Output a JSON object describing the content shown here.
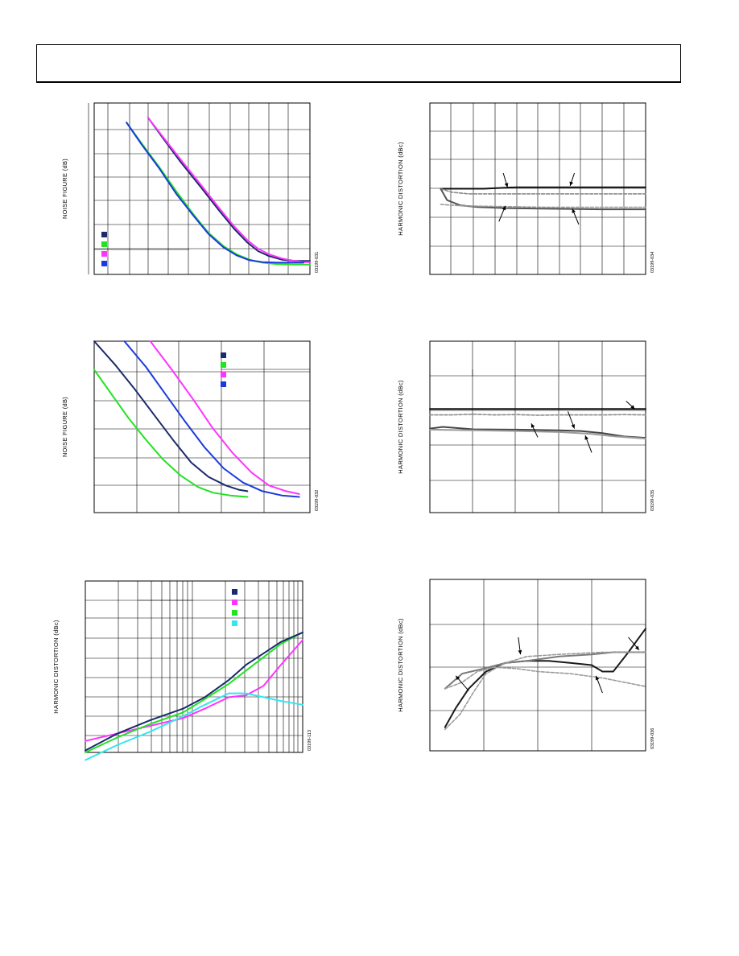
{
  "page": {
    "colors": {
      "border": "#000000",
      "grid": "#000000"
    }
  },
  "charts": [
    {
      "id": "tpc-31",
      "chart_data": {
        "type": "line",
        "ylabel": "NOISE FIGURE (dB)",
        "figure_id": "03199-031",
        "xscale": "log",
        "xlim": [
          0,
          10
        ],
        "ylim": [
          0,
          7
        ],
        "grid": true,
        "legend": {
          "position": "bottom-left",
          "colors": [
            "#1a2a6c",
            "#21e321",
            "#ff33ff",
            "#1a3adf"
          ]
        },
        "series": [
          {
            "color": "#1a2a6c",
            "x": [
              2.5,
              3.2,
              4.0,
              5.0,
              5.8,
              6.5,
              7.1,
              7.6,
              8.1,
              8.7,
              9.3,
              9.7,
              10.0
            ],
            "y": [
              6.4,
              5.55,
              4.6,
              3.5,
              2.6,
              1.85,
              1.3,
              0.95,
              0.75,
              0.6,
              0.55,
              0.55,
              0.55
            ]
          },
          {
            "color": "#ff33ff",
            "x": [
              2.5,
              3.2,
              4.0,
              5.0,
              5.8,
              6.5,
              7.1,
              7.6,
              8.1,
              8.7,
              9.3,
              9.7,
              10.0
            ],
            "y": [
              6.4,
              5.6,
              4.7,
              3.6,
              2.7,
              1.95,
              1.4,
              1.05,
              0.82,
              0.65,
              0.55,
              0.5,
              0.5
            ]
          },
          {
            "color": "#21e321",
            "x": [
              1.5,
              2.2,
              3.0,
              3.8,
              4.6,
              5.3,
              6.0,
              6.6,
              7.2,
              7.8,
              8.5,
              9.3,
              10.0
            ],
            "y": [
              6.2,
              5.35,
              4.4,
              3.4,
              2.45,
              1.7,
              1.15,
              0.82,
              0.6,
              0.48,
              0.42,
              0.4,
              0.4
            ]
          },
          {
            "color": "#1a3adf",
            "x": [
              1.5,
              2.2,
              3.0,
              3.8,
              4.6,
              5.3,
              6.0,
              6.6,
              7.2,
              7.8,
              8.5,
              9.3,
              9.7
            ],
            "y": [
              6.2,
              5.3,
              4.35,
              3.3,
              2.4,
              1.65,
              1.1,
              0.78,
              0.58,
              0.5,
              0.48,
              0.48,
              0.48
            ]
          }
        ]
      }
    },
    {
      "id": "tpc-32",
      "chart_data": {
        "type": "line",
        "ylabel": "NOISE FIGURE (dB)",
        "figure_id": "03199-032",
        "xlim": [
          0,
          10
        ],
        "ylim": [
          0,
          6
        ],
        "grid": true,
        "legend": {
          "position": "top-right",
          "colors": [
            "#1a2a6c",
            "#21e321",
            "#ff33ff",
            "#1a3adf"
          ]
        },
        "series": [
          {
            "color": "#21e321",
            "x": [
              0,
              0.8,
              1.6,
              2.4,
              3.2,
              4.0,
              4.8,
              5.5,
              6.3,
              7.1
            ],
            "y": [
              5.0,
              4.15,
              3.3,
              2.55,
              1.85,
              1.3,
              0.9,
              0.7,
              0.6,
              0.55
            ]
          },
          {
            "color": "#1a2a6c",
            "x": [
              0,
              1.0,
              1.9,
              2.8,
              3.7,
              4.5,
              5.3,
              6.1,
              6.7,
              7.1
            ],
            "y": [
              6.0,
              5.15,
              4.3,
              3.4,
              2.5,
              1.75,
              1.25,
              0.95,
              0.8,
              0.75
            ]
          },
          {
            "color": "#1a3adf",
            "x": [
              1.4,
              2.4,
              3.3,
              4.2,
              5.1,
              6.0,
              6.9,
              7.8,
              8.7,
              9.5
            ],
            "y": [
              6.0,
              5.1,
              4.15,
              3.2,
              2.3,
              1.55,
              1.05,
              0.75,
              0.6,
              0.55
            ]
          },
          {
            "color": "#ff33ff",
            "x": [
              2.6,
              3.6,
              4.6,
              5.5,
              6.4,
              7.3,
              8.1,
              8.9,
              9.5
            ],
            "y": [
              6.0,
              5.0,
              3.95,
              2.95,
              2.1,
              1.4,
              0.95,
              0.75,
              0.65
            ]
          }
        ]
      }
    },
    {
      "id": "tpc-33",
      "chart_data": {
        "type": "line",
        "ylabel": "HARMONIC DISTORTION (dBc)",
        "figure_id": "03199-113",
        "xscale": "log",
        "xlim": [
          0,
          10
        ],
        "ylim": [
          0,
          9
        ],
        "grid": true,
        "legend": {
          "position": "top-right",
          "colors": [
            "#1a2a6c",
            "#ff33ff",
            "#21e321",
            "#33e6f0"
          ]
        },
        "series": [
          {
            "color": "#ff33ff",
            "x": [
              0,
              1.5,
              3.0,
              4.5,
              5.5,
              6.6,
              7.4,
              8.2,
              9.0,
              10.0
            ],
            "y": [
              0.6,
              1.0,
              1.4,
              1.8,
              2.3,
              2.9,
              3.0,
              3.5,
              4.6,
              5.9
            ]
          },
          {
            "color": "#33e6f0",
            "x": [
              0,
              1.5,
              3.0,
              4.5,
              5.5,
              6.6,
              7.4,
              8.2,
              9.0,
              10.0
            ],
            "y": [
              -0.4,
              0.4,
              1.1,
              1.9,
              2.5,
              3.1,
              3.1,
              2.9,
              2.7,
              2.5
            ]
          },
          {
            "color": "#21e321",
            "x": [
              0,
              1.5,
              3.0,
              4.5,
              5.5,
              6.6,
              7.4,
              8.2,
              9.0,
              10.0
            ],
            "y": [
              0,
              0.8,
              1.5,
              2.1,
              2.8,
              3.6,
              4.3,
              5.0,
              5.7,
              6.3
            ]
          },
          {
            "color": "#1a2a6c",
            "x": [
              0,
              1.5,
              3.0,
              4.5,
              5.5,
              6.6,
              7.4,
              8.2,
              9.0,
              10.0
            ],
            "y": [
              0.1,
              1.0,
              1.7,
              2.3,
              2.9,
              3.8,
              4.6,
              5.2,
              5.8,
              6.3
            ]
          }
        ]
      }
    },
    {
      "id": "tpc-34",
      "chart_data": {
        "type": "line",
        "ylabel": "HARMONIC DISTORTION (dBc)",
        "figure_id": "03199-034",
        "xlim": [
          0,
          10
        ],
        "ylim": [
          0,
          6
        ],
        "grid": true,
        "series": [
          {
            "color": "#111111",
            "x": [
              0.5,
              1.5,
              2.5,
              4.0,
              6.0,
              8.0,
              10.0
            ],
            "y": [
              3.0,
              3.0,
              3.0,
              3.05,
              3.05,
              3.05,
              3.05
            ]
          },
          {
            "color": "#8a8a8a",
            "dash": true,
            "x": [
              0.5,
              1.0,
              1.8,
              3.0,
              5.0,
              7.0,
              10.0
            ],
            "y": [
              3.0,
              2.88,
              2.82,
              2.82,
              2.82,
              2.82,
              2.82
            ]
          },
          {
            "color": "#555555",
            "x": [
              0.5,
              0.8,
              1.4,
              2.2,
              3.5,
              5.5,
              8.0,
              10.0
            ],
            "y": [
              3.0,
              2.6,
              2.42,
              2.36,
              2.32,
              2.3,
              2.28,
              2.28
            ]
          },
          {
            "color": "#9a9a9a",
            "dash": true,
            "x": [
              0.5,
              1.5,
              3.0,
              5.5,
              8.0,
              10.0
            ],
            "y": [
              2.45,
              2.4,
              2.38,
              2.35,
              2.35,
              2.35
            ]
          }
        ],
        "arrows": [
          {
            "from": [
              3.4,
              3.55
            ],
            "to": [
              3.6,
              3.05
            ]
          },
          {
            "from": [
              6.7,
              3.55
            ],
            "to": [
              6.5,
              3.1
            ]
          },
          {
            "from": [
              3.2,
              1.85
            ],
            "to": [
              3.5,
              2.4
            ]
          },
          {
            "from": [
              6.9,
              1.75
            ],
            "to": [
              6.6,
              2.3
            ]
          }
        ]
      }
    },
    {
      "id": "tpc-35",
      "chart_data": {
        "type": "line",
        "ylabel": "HARMONIC DISTORTION (dBc)",
        "figure_id": "03199-035",
        "xlim": [
          0,
          5
        ],
        "ylim": [
          0,
          5
        ],
        "grid": true,
        "series": [
          {
            "color": "#111111",
            "x": [
              0,
              1.0,
              2.0,
              3.0,
              4.0,
              5.0
            ],
            "y": [
              3.02,
              3.02,
              3.02,
              3.02,
              3.02,
              3.02
            ]
          },
          {
            "color": "#8a8a8a",
            "dash": true,
            "x": [
              0,
              0.5,
              1.0,
              1.5,
              2.0,
              2.5,
              3.0,
              3.5,
              4.0,
              4.5,
              5.0
            ],
            "y": [
              2.85,
              2.85,
              2.87,
              2.85,
              2.86,
              2.84,
              2.85,
              2.85,
              2.85,
              2.86,
              2.85
            ]
          },
          {
            "color": "#444444",
            "x": [
              0,
              0.3,
              1.0,
              2.0,
              3.0,
              3.5,
              4.0,
              4.5,
              5.0
            ],
            "y": [
              2.45,
              2.5,
              2.43,
              2.42,
              2.4,
              2.38,
              2.32,
              2.22,
              2.18
            ]
          },
          {
            "color": "#9a9a9a",
            "x": [
              0,
              1.0,
              2.0,
              3.0,
              3.7,
              4.3,
              5.0
            ],
            "y": [
              2.42,
              2.4,
              2.38,
              2.35,
              2.3,
              2.22,
              2.16
            ]
          }
        ],
        "arrows": [
          {
            "from": [
              4.55,
              3.25
            ],
            "to": [
              4.75,
              3.02
            ]
          },
          {
            "from": [
              3.2,
              2.95
            ],
            "to": [
              3.35,
              2.45
            ]
          },
          {
            "from": [
              2.5,
              2.2
            ],
            "to": [
              2.35,
              2.6
            ]
          },
          {
            "from": [
              3.75,
              1.75
            ],
            "to": [
              3.6,
              2.25
            ]
          }
        ]
      }
    },
    {
      "id": "tpc-36",
      "chart_data": {
        "type": "line",
        "ylabel": "HARMONIC DISTORTION (dBc)",
        "figure_id": "03199-036",
        "xlim": [
          0,
          10
        ],
        "ylim": [
          0,
          4
        ],
        "grid": true,
        "series": [
          {
            "color": "#1a1a1a",
            "x": [
              0.7,
              1.2,
              1.8,
              2.6,
              3.5,
              4.5,
              5.5,
              6.5,
              7.5,
              8.0,
              8.5,
              9.2,
              10.0
            ],
            "y": [
              0.55,
              1.0,
              1.45,
              1.85,
              2.05,
              2.1,
              2.1,
              2.05,
              2.0,
              1.85,
              1.85,
              2.3,
              2.85
            ]
          },
          {
            "color": "#7a7a7a",
            "x": [
              0.7,
              1.5,
              2.5,
              3.5,
              4.5,
              6.0,
              7.5,
              8.5,
              10.0
            ],
            "y": [
              1.45,
              1.8,
              1.92,
              2.05,
              2.1,
              2.2,
              2.25,
              2.3,
              2.3
            ]
          },
          {
            "color": "#9a9a9a",
            "dash": true,
            "x": [
              0.7,
              1.5,
              2.2,
              3.0,
              4.0,
              5.0,
              6.5,
              8.0,
              10.0
            ],
            "y": [
              1.45,
              1.6,
              1.85,
              1.95,
              1.92,
              1.85,
              1.8,
              1.7,
              1.5
            ]
          },
          {
            "color": "#9a9a9a",
            "dash": true,
            "x": [
              0.7,
              1.4,
              2.0,
              2.6,
              3.5,
              4.5,
              6.0,
              8.0,
              10.0
            ],
            "y": [
              0.5,
              0.85,
              1.35,
              1.8,
              2.05,
              2.2,
              2.25,
              2.3,
              2.3
            ]
          }
        ],
        "arrows": [
          {
            "from": [
              4.1,
              2.65
            ],
            "to": [
              4.2,
              2.25
            ]
          },
          {
            "from": [
              9.2,
              2.65
            ],
            "to": [
              9.7,
              2.35
            ]
          },
          {
            "from": [
              1.8,
              1.4
            ],
            "to": [
              1.2,
              1.75
            ]
          },
          {
            "from": [
              8.0,
              1.35
            ],
            "to": [
              7.7,
              1.75
            ]
          }
        ]
      }
    }
  ]
}
